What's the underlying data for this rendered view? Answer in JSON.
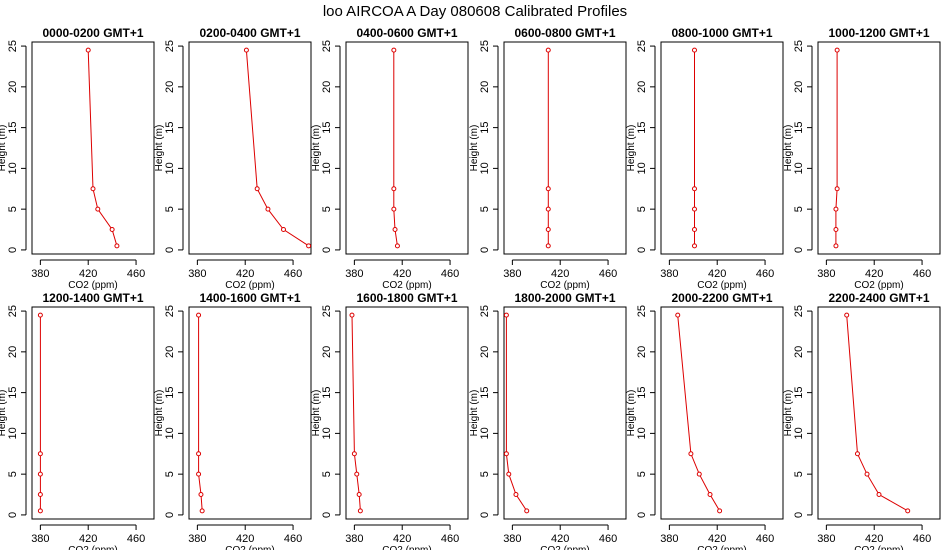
{
  "chart_data": {
    "title": "loo AIRCOA A  Day 080608  Calibrated Profiles",
    "type": "line",
    "xlabel": "CO2 (ppm)",
    "ylabel": "Height (m)",
    "xlim": [
      373,
      475
    ],
    "ylim": [
      -0.5,
      25.5
    ],
    "xticks": [
      380,
      420,
      460
    ],
    "yticks": [
      0,
      5,
      10,
      15,
      20,
      25
    ],
    "series_color": "#dd0000",
    "heights": [
      24.5,
      7.5,
      5,
      2.5,
      0.5
    ],
    "panels": [
      {
        "title": "0000-0200 GMT+1",
        "values": [
          420,
          424,
          428,
          440,
          444
        ]
      },
      {
        "title": "0200-0400 GMT+1",
        "values": [
          421,
          430,
          439,
          452,
          473
        ]
      },
      {
        "title": "0400-0600 GMT+1",
        "values": [
          413,
          413,
          413,
          414,
          416
        ]
      },
      {
        "title": "0600-0800 GMT+1",
        "values": [
          410,
          410,
          410,
          410,
          410
        ]
      },
      {
        "title": "0800-1000 GMT+1",
        "values": [
          401,
          401,
          401,
          401,
          401
        ]
      },
      {
        "title": "1000-1200 GMT+1",
        "values": [
          389,
          389,
          388,
          388,
          388
        ]
      },
      {
        "title": "1200-1400 GMT+1",
        "values": [
          380,
          380,
          380,
          380,
          380
        ]
      },
      {
        "title": "1400-1600 GMT+1",
        "values": [
          381,
          381,
          381,
          383,
          384
        ]
      },
      {
        "title": "1600-1800 GMT+1",
        "values": [
          378,
          380,
          382,
          384,
          385
        ]
      },
      {
        "title": "1800-2000 GMT+1",
        "values": [
          375,
          375,
          377,
          383,
          392
        ]
      },
      {
        "title": "2000-2200 GMT+1",
        "values": [
          387,
          398,
          405,
          414,
          422
        ]
      },
      {
        "title": "2200-2400 GMT+1",
        "values": [
          397,
          406,
          414,
          424,
          448
        ]
      }
    ]
  }
}
